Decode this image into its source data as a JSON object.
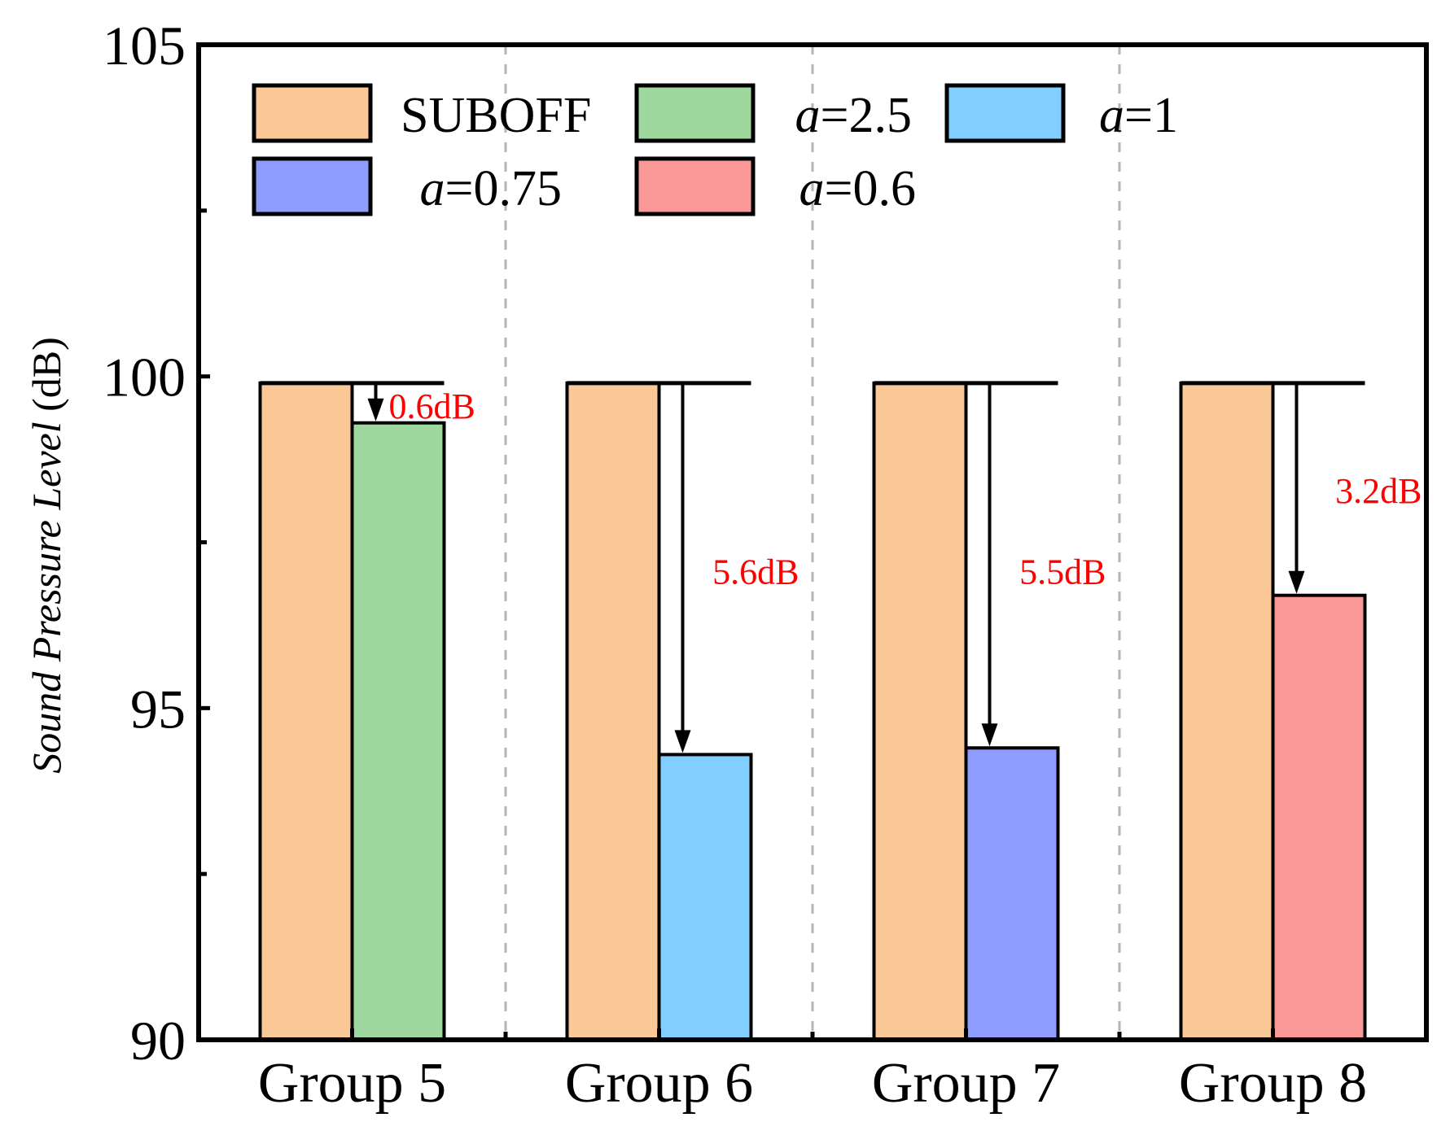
{
  "chart_data": {
    "type": "bar",
    "title": "",
    "xlabel": "",
    "ylabel": {
      "italic_part": "Sound Pressure Level",
      "unit_part": " (dB)"
    },
    "ylim": [
      90,
      105
    ],
    "yticks": [
      {
        "value": 90,
        "label": "90"
      },
      {
        "value": 95,
        "label": "95"
      },
      {
        "value": 100,
        "label": "100"
      },
      {
        "value": 105,
        "label": "105"
      }
    ],
    "y_minor_ticks": [
      92.5,
      97.5,
      102.5
    ],
    "grid": false,
    "group_separators": "dashed vertical lines between groups",
    "legend": {
      "placement": "top-left",
      "entries": [
        {
          "series": "suboff",
          "prefix": "",
          "text": "SUBOFF"
        },
        {
          "series": "a25",
          "prefix": "a",
          "text": "=2.5"
        },
        {
          "series": "a1",
          "prefix": "a",
          "text": "=1"
        },
        {
          "series": "a075",
          "prefix": "a",
          "text": "=0.75"
        },
        {
          "series": "a06",
          "prefix": "a",
          "text": "=0.6"
        }
      ]
    },
    "series_colors": {
      "suboff": "#fbc897",
      "a25": "#9fd89e",
      "a1": "#82cfff",
      "a075": "#8f9cff",
      "a06": "#fa9898"
    },
    "groups": [
      {
        "label": "Group 5",
        "bars": [
          {
            "series": "suboff",
            "value": 99.9
          },
          {
            "series": "a25",
            "value": 99.3
          }
        ],
        "reduction_label": "0.6dB"
      },
      {
        "label": "Group 6",
        "bars": [
          {
            "series": "suboff",
            "value": 99.9
          },
          {
            "series": "a1",
            "value": 94.3
          }
        ],
        "reduction_label": "5.6dB"
      },
      {
        "label": "Group 7",
        "bars": [
          {
            "series": "suboff",
            "value": 99.9
          },
          {
            "series": "a075",
            "value": 94.4
          }
        ],
        "reduction_label": "5.5dB"
      },
      {
        "label": "Group 8",
        "bars": [
          {
            "series": "suboff",
            "value": 99.9
          },
          {
            "series": "a06",
            "value": 96.7
          }
        ],
        "reduction_label": "3.2dB"
      }
    ]
  }
}
